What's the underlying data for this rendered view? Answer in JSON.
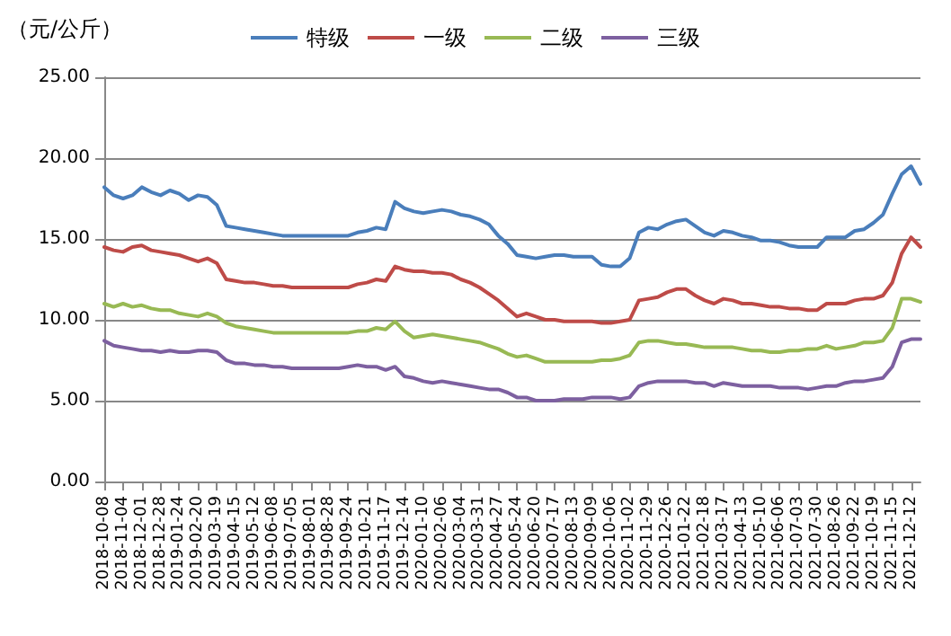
{
  "chart_data": {
    "type": "line",
    "ylabel": "（元/公斤）",
    "legend": "top",
    "grid": "y",
    "marker": "none",
    "line_style": "solid",
    "categories": [
      "2018-10-08",
      null,
      "2018-11-04",
      null,
      "2018-12-01",
      null,
      "2018-12-28",
      null,
      "2019-01-24",
      null,
      "2019-02-20",
      null,
      "2019-03-19",
      null,
      "2019-04-15",
      null,
      "2019-05-12",
      null,
      "2019-06-08",
      null,
      "2019-07-05",
      null,
      "2019-08-01",
      null,
      "2019-08-28",
      null,
      "2019-09-24",
      null,
      "2019-10-21",
      null,
      "2019-11-17",
      null,
      "2019-12-14",
      null,
      "2020-01-10",
      null,
      "2020-02-06",
      null,
      "2020-03-04",
      null,
      "2020-03-31",
      null,
      "2020-04-27",
      null,
      "2020-05-24",
      null,
      "2020-06-20",
      null,
      "2020-07-17",
      null,
      "2020-08-13",
      null,
      "2020-09-09",
      null,
      "2020-10-06",
      null,
      "2020-11-02",
      null,
      "2020-11-29",
      null,
      "2020-12-26",
      null,
      "2021-01-22",
      null,
      "2021-02-18",
      null,
      "2021-03-17",
      null,
      "2021-04-13",
      null,
      "2021-05-10",
      null,
      "2021-06-06",
      null,
      "2021-07-03",
      null,
      "2021-07-30",
      null,
      "2021-08-26",
      null,
      "2021-09-22",
      null,
      "2021-10-19",
      null,
      "2021-11-15",
      null,
      "2021-12-12",
      null
    ],
    "ylim": [
      0,
      25
    ],
    "yticks": [
      {
        "value": 0,
        "label": "0.00"
      },
      {
        "value": 5,
        "label": "5.00"
      },
      {
        "value": 10,
        "label": "10.00"
      },
      {
        "value": 15,
        "label": "15.00"
      },
      {
        "value": 20,
        "label": "20.00"
      },
      {
        "value": 25,
        "label": "25.00"
      }
    ],
    "series": [
      {
        "name": "特级",
        "color": "#4a7ebb",
        "values": [
          18.2,
          17.7,
          17.5,
          17.7,
          18.2,
          17.9,
          17.7,
          18.0,
          17.8,
          17.4,
          17.7,
          17.6,
          17.1,
          15.8,
          15.7,
          15.6,
          15.5,
          15.4,
          15.3,
          15.2,
          15.2,
          15.2,
          15.2,
          15.2,
          15.2,
          15.2,
          15.2,
          15.4,
          15.5,
          15.7,
          15.6,
          17.3,
          16.9,
          16.7,
          16.6,
          16.7,
          16.8,
          16.7,
          16.5,
          16.4,
          16.2,
          15.9,
          15.2,
          14.7,
          14.0,
          13.9,
          13.8,
          13.9,
          14.0,
          14.0,
          13.9,
          13.9,
          13.9,
          13.4,
          13.3,
          13.3,
          13.8,
          15.4,
          15.7,
          15.6,
          15.9,
          16.1,
          16.2,
          15.8,
          15.4,
          15.2,
          15.5,
          15.4,
          15.2,
          15.1,
          14.9,
          14.9,
          14.8,
          14.6,
          14.5,
          14.5,
          14.5,
          15.1,
          15.1,
          15.1,
          15.5,
          15.6,
          16.0,
          16.5,
          17.8,
          19.0,
          19.5,
          18.4
        ]
      },
      {
        "name": "一级",
        "color": "#be4b48",
        "values": [
          14.5,
          14.3,
          14.2,
          14.5,
          14.6,
          14.3,
          14.2,
          14.1,
          14.0,
          13.8,
          13.6,
          13.8,
          13.5,
          12.5,
          12.4,
          12.3,
          12.3,
          12.2,
          12.1,
          12.1,
          12.0,
          12.0,
          12.0,
          12.0,
          12.0,
          12.0,
          12.0,
          12.2,
          12.3,
          12.5,
          12.4,
          13.3,
          13.1,
          13.0,
          13.0,
          12.9,
          12.9,
          12.8,
          12.5,
          12.3,
          12.0,
          11.6,
          11.2,
          10.7,
          10.2,
          10.4,
          10.2,
          10.0,
          10.0,
          9.9,
          9.9,
          9.9,
          9.9,
          9.8,
          9.8,
          9.9,
          10.0,
          11.2,
          11.3,
          11.4,
          11.7,
          11.9,
          11.9,
          11.5,
          11.2,
          11.0,
          11.3,
          11.2,
          11.0,
          11.0,
          10.9,
          10.8,
          10.8,
          10.7,
          10.7,
          10.6,
          10.6,
          11.0,
          11.0,
          11.0,
          11.2,
          11.3,
          11.3,
          11.5,
          12.3,
          14.1,
          15.1,
          14.5
        ]
      },
      {
        "name": "二级",
        "color": "#98b954",
        "values": [
          11.0,
          10.8,
          11.0,
          10.8,
          10.9,
          10.7,
          10.6,
          10.6,
          10.4,
          10.3,
          10.2,
          10.4,
          10.2,
          9.8,
          9.6,
          9.5,
          9.4,
          9.3,
          9.2,
          9.2,
          9.2,
          9.2,
          9.2,
          9.2,
          9.2,
          9.2,
          9.2,
          9.3,
          9.3,
          9.5,
          9.4,
          9.9,
          9.3,
          8.9,
          9.0,
          9.1,
          9.0,
          8.9,
          8.8,
          8.7,
          8.6,
          8.4,
          8.2,
          7.9,
          7.7,
          7.8,
          7.6,
          7.4,
          7.4,
          7.4,
          7.4,
          7.4,
          7.4,
          7.5,
          7.5,
          7.6,
          7.8,
          8.6,
          8.7,
          8.7,
          8.6,
          8.5,
          8.5,
          8.4,
          8.3,
          8.3,
          8.3,
          8.3,
          8.2,
          8.1,
          8.1,
          8.0,
          8.0,
          8.1,
          8.1,
          8.2,
          8.2,
          8.4,
          8.2,
          8.3,
          8.4,
          8.6,
          8.6,
          8.7,
          9.5,
          11.3,
          11.3,
          11.1
        ]
      },
      {
        "name": "三级",
        "color": "#7d60a0",
        "values": [
          8.7,
          8.4,
          8.3,
          8.2,
          8.1,
          8.1,
          8.0,
          8.1,
          8.0,
          8.0,
          8.1,
          8.1,
          8.0,
          7.5,
          7.3,
          7.3,
          7.2,
          7.2,
          7.1,
          7.1,
          7.0,
          7.0,
          7.0,
          7.0,
          7.0,
          7.0,
          7.1,
          7.2,
          7.1,
          7.1,
          6.9,
          7.1,
          6.5,
          6.4,
          6.2,
          6.1,
          6.2,
          6.1,
          6.0,
          5.9,
          5.8,
          5.7,
          5.7,
          5.5,
          5.2,
          5.2,
          5.0,
          5.0,
          5.0,
          5.1,
          5.1,
          5.1,
          5.2,
          5.2,
          5.2,
          5.1,
          5.2,
          5.9,
          6.1,
          6.2,
          6.2,
          6.2,
          6.2,
          6.1,
          6.1,
          5.9,
          6.1,
          6.0,
          5.9,
          5.9,
          5.9,
          5.9,
          5.8,
          5.8,
          5.8,
          5.7,
          5.8,
          5.9,
          5.9,
          6.1,
          6.2,
          6.2,
          6.3,
          6.4,
          7.1,
          8.6,
          8.8,
          8.8
        ]
      }
    ]
  }
}
